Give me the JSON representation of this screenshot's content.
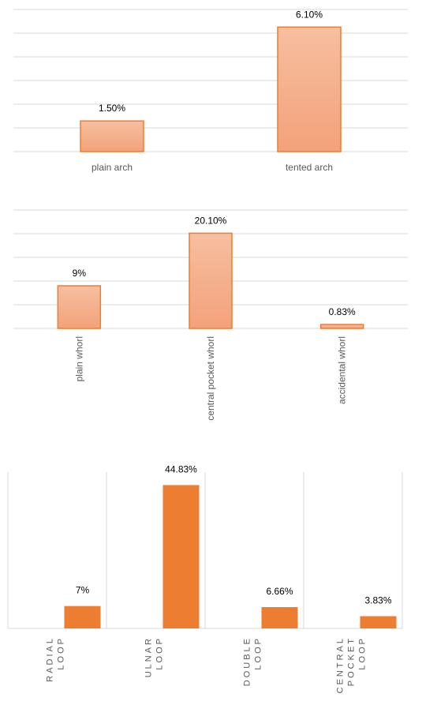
{
  "chart_data": [
    {
      "type": "bar",
      "categories": [
        "plain arch",
        "tented arch"
      ],
      "values": [
        1.5,
        6.1
      ],
      "data_labels": [
        "1.50%",
        "6.10%"
      ],
      "ylim": [
        0,
        7
      ],
      "grid": true,
      "bar_style": "gradient-orange-outlined"
    },
    {
      "type": "bar",
      "categories": [
        "plain whorl",
        "central pocket whorl",
        "accidental whorl"
      ],
      "values": [
        9,
        20.1,
        0.83
      ],
      "data_labels": [
        "9%",
        "20.10%",
        "0.83%"
      ],
      "ylim": [
        0,
        25
      ],
      "grid": true,
      "category_label_orientation": "vertical",
      "bar_style": "gradient-orange-outlined"
    },
    {
      "type": "bar",
      "categories": [
        "RADIAL LOOP",
        "ULNAR LOOP",
        "DOUBLE LOOP",
        "CENTRAL POCKET LOOP"
      ],
      "category_lines": [
        [
          "RADIAL",
          "LOOP"
        ],
        [
          "ULNAR",
          "LOOP"
        ],
        [
          "DOUBLE",
          "LOOP"
        ],
        [
          "CENTRAL",
          "POCKET",
          "LOOP"
        ]
      ],
      "values": [
        7,
        44.83,
        6.66,
        3.83
      ],
      "data_labels": [
        "7%",
        "44.83%",
        "6.66%",
        "3.83%"
      ],
      "ylim": [
        0,
        50
      ],
      "grid": false,
      "category_label_orientation": "vertical",
      "bar_style": "solid-orange"
    }
  ],
  "colors": {
    "bar_fill_top": "#f6bfa0",
    "bar_fill_bottom": "#f3a27a",
    "bar_outline": "#ed7d31",
    "bar_solid": "#ed7d31",
    "gridline": "#d9d9d9",
    "label_text": "#000000",
    "category_text": "#595959"
  }
}
